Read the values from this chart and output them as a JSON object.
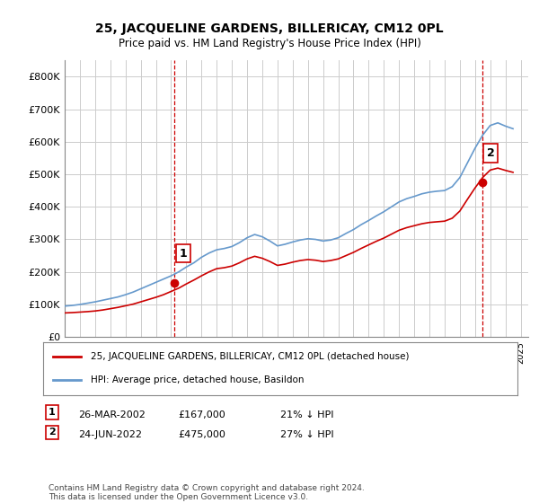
{
  "title": "25, JACQUELINE GARDENS, BILLERICAY, CM12 0PL",
  "subtitle": "Price paid vs. HM Land Registry's House Price Index (HPI)",
  "ylabel_ticks": [
    "£0",
    "£100K",
    "£200K",
    "£300K",
    "£400K",
    "£500K",
    "£600K",
    "£700K",
    "£800K"
  ],
  "ytick_values": [
    0,
    100000,
    200000,
    300000,
    400000,
    500000,
    600000,
    700000,
    800000
  ],
  "ylim": [
    0,
    850000
  ],
  "xlim_start": 1995.0,
  "xlim_end": 2025.5,
  "legend_line1": "25, JACQUELINE GARDENS, BILLERICAY, CM12 0PL (detached house)",
  "legend_line2": "HPI: Average price, detached house, Basildon",
  "marker1_date": "26-MAR-2002",
  "marker1_price": "£167,000",
  "marker1_pct": "21% ↓ HPI",
  "marker1_year": 2002.23,
  "marker1_value": 167000,
  "marker2_date": "24-JUN-2022",
  "marker2_price": "£475,000",
  "marker2_pct": "27% ↓ HPI",
  "marker2_year": 2022.48,
  "marker2_value": 475000,
  "red_color": "#cc0000",
  "blue_color": "#6699cc",
  "vline_color": "#cc0000",
  "grid_color": "#cccccc",
  "background_color": "#ffffff",
  "footnote1": "Contains HM Land Registry data © Crown copyright and database right 2024.",
  "footnote2": "This data is licensed under the Open Government Licence v3.0.",
  "hpi_years": [
    1995,
    1995.5,
    1996,
    1996.5,
    1997,
    1997.5,
    1998,
    1998.5,
    1999,
    1999.5,
    2000,
    2000.5,
    2001,
    2001.5,
    2002,
    2002.5,
    2003,
    2003.5,
    2004,
    2004.5,
    2005,
    2005.5,
    2006,
    2006.5,
    2007,
    2007.5,
    2008,
    2008.5,
    2009,
    2009.5,
    2010,
    2010.5,
    2011,
    2011.5,
    2012,
    2012.5,
    2013,
    2013.5,
    2014,
    2014.5,
    2015,
    2015.5,
    2016,
    2016.5,
    2017,
    2017.5,
    2018,
    2018.5,
    2019,
    2019.5,
    2020,
    2020.5,
    2021,
    2021.5,
    2022,
    2022.5,
    2023,
    2023.5,
    2024,
    2024.5
  ],
  "hpi_values": [
    95000,
    97000,
    100000,
    104000,
    108000,
    113000,
    118000,
    123000,
    130000,
    138000,
    148000,
    158000,
    168000,
    178000,
    188000,
    200000,
    215000,
    228000,
    245000,
    258000,
    268000,
    272000,
    278000,
    290000,
    305000,
    315000,
    308000,
    295000,
    280000,
    285000,
    292000,
    298000,
    302000,
    300000,
    295000,
    298000,
    305000,
    318000,
    330000,
    345000,
    358000,
    372000,
    385000,
    400000,
    415000,
    425000,
    432000,
    440000,
    445000,
    448000,
    450000,
    462000,
    490000,
    535000,
    580000,
    620000,
    650000,
    658000,
    648000,
    640000
  ],
  "red_years": [
    1995,
    1995.5,
    1996,
    1996.5,
    1997,
    1997.5,
    1998,
    1998.5,
    1999,
    1999.5,
    2000,
    2000.5,
    2001,
    2001.5,
    2002,
    2002.5,
    2003,
    2003.5,
    2004,
    2004.5,
    2005,
    2005.5,
    2006,
    2006.5,
    2007,
    2007.5,
    2008,
    2008.5,
    2009,
    2009.5,
    2010,
    2010.5,
    2011,
    2011.5,
    2012,
    2012.5,
    2013,
    2013.5,
    2014,
    2014.5,
    2015,
    2015.5,
    2016,
    2016.5,
    2017,
    2017.5,
    2018,
    2018.5,
    2019,
    2019.5,
    2020,
    2020.5,
    2021,
    2021.5,
    2022,
    2022.5,
    2023,
    2023.5,
    2024,
    2024.5
  ],
  "red_values": [
    74000,
    75000,
    76500,
    78000,
    80000,
    83000,
    87000,
    91000,
    96000,
    101000,
    108000,
    115000,
    122000,
    130000,
    140000,
    150000,
    163000,
    175000,
    188000,
    200000,
    210000,
    213000,
    218000,
    228000,
    240000,
    248000,
    242000,
    232000,
    220000,
    224000,
    230000,
    235000,
    238000,
    236000,
    232000,
    235000,
    240000,
    250000,
    260000,
    272000,
    283000,
    294000,
    304000,
    316000,
    328000,
    336000,
    342000,
    348000,
    352000,
    354000,
    356000,
    365000,
    387000,
    423000,
    458000,
    490000,
    513000,
    519000,
    512000,
    506000
  ]
}
